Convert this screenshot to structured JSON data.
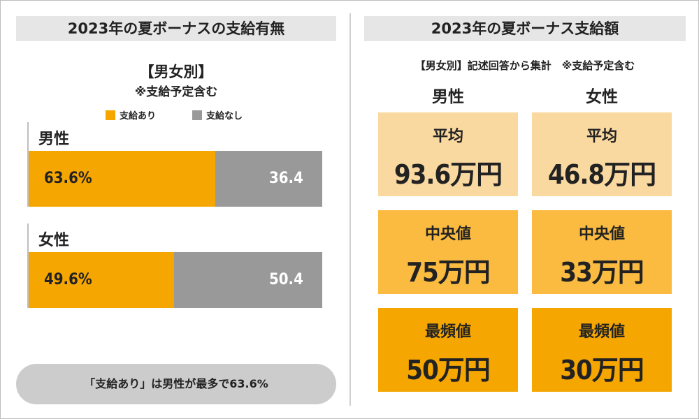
{
  "left_panel": {
    "title": "2023年の夏ボーナスの支給有無",
    "subtitle": "【男女別】",
    "note": "※支給予定含む",
    "legend": [
      {
        "label": "支給あり",
        "color": "#f5a600"
      },
      {
        "label": "支給なし",
        "color": "#999999"
      }
    ],
    "summary": "「支給あり」は男性が最多で63.6%"
  },
  "chart_data": {
    "type": "bar",
    "orientation": "horizontal",
    "stacked": true,
    "percent": true,
    "categories": [
      "男性",
      "女性"
    ],
    "series": [
      {
        "name": "支給あり",
        "values": [
          63.6,
          49.6
        ],
        "labels": [
          "63.6%",
          "49.6%"
        ],
        "color": "#f5a600"
      },
      {
        "name": "支給なし",
        "values": [
          36.4,
          50.4
        ],
        "labels": [
          "36.4",
          "50.4"
        ],
        "color": "#999999"
      }
    ],
    "title": "2023年の夏ボーナスの支給有無",
    "xlim": [
      0,
      100
    ],
    "legend_position": "top"
  },
  "right_panel": {
    "title": "2023年の夏ボーナス支給額",
    "note": "【男女別】記述回答から集計　※支給予定含む",
    "columns": [
      "男性",
      "女性"
    ],
    "rows": [
      {
        "label": "平均",
        "values": [
          "93.6万円",
          "46.8万円"
        ],
        "color": "#fad9a1"
      },
      {
        "label": "中央値",
        "values": [
          "75万円",
          "33万円"
        ],
        "color": "#fbbb40"
      },
      {
        "label": "最頻値",
        "values": [
          "50万円",
          "30万円"
        ],
        "color": "#f5a600"
      }
    ]
  }
}
